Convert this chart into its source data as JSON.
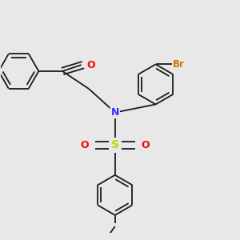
{
  "background_color": "#e8e8e8",
  "bond_color": "#1a1a1a",
  "N_color": "#3333ff",
  "O_color": "#ff0000",
  "S_color": "#cccc00",
  "Br_color": "#cc7700",
  "figsize": [
    3.0,
    3.0
  ],
  "dpi": 100,
  "lw": 1.3,
  "ring_r": 0.32,
  "xlim": [
    -2.0,
    1.8
  ],
  "ylim": [
    -2.0,
    1.6
  ]
}
